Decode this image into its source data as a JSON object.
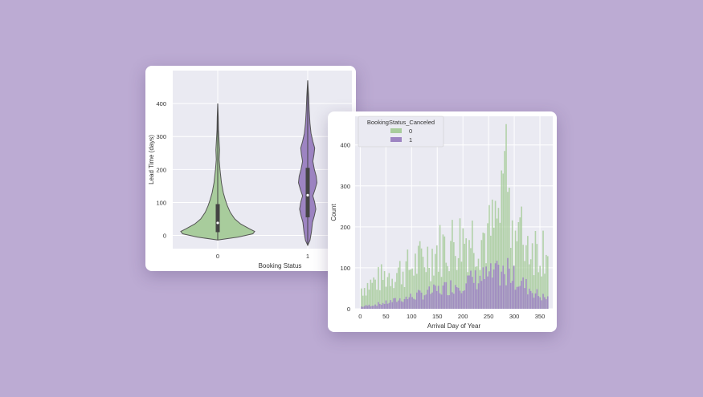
{
  "chart_data": [
    {
      "type": "violin",
      "title": "",
      "xlabel": "Booking Status",
      "ylabel": "Lead Time (days)",
      "categories": [
        "0",
        "1"
      ],
      "yticks": [
        0,
        100,
        200,
        300,
        400
      ],
      "ylim": [
        -40,
        500
      ],
      "grid": true,
      "colors": [
        "#a8cc9c",
        "#9d84c2"
      ],
      "series": [
        {
          "category": "0",
          "min": -14,
          "q1": 10,
          "median": 38,
          "q3": 95,
          "max": 400,
          "density": [
            [
              -14,
              0.0
            ],
            [
              -5,
              0.55
            ],
            [
              5,
              0.95
            ],
            [
              12,
              1.0
            ],
            [
              20,
              0.86
            ],
            [
              35,
              0.62
            ],
            [
              50,
              0.46
            ],
            [
              70,
              0.34
            ],
            [
              90,
              0.26
            ],
            [
              110,
              0.2
            ],
            [
              130,
              0.15
            ],
            [
              160,
              0.1
            ],
            [
              200,
              0.06
            ],
            [
              230,
              0.04
            ],
            [
              260,
              0.05
            ],
            [
              280,
              0.04
            ],
            [
              320,
              0.02
            ],
            [
              360,
              0.012
            ],
            [
              400,
              0.0
            ]
          ]
        },
        {
          "category": "1",
          "min": -30,
          "q1": 55,
          "median": 122,
          "q3": 205,
          "max": 470,
          "density": [
            [
              -30,
              0.0
            ],
            [
              -15,
              0.06
            ],
            [
              10,
              0.1
            ],
            [
              40,
              0.13
            ],
            [
              60,
              0.18
            ],
            [
              80,
              0.22
            ],
            [
              100,
              0.19
            ],
            [
              120,
              0.14
            ],
            [
              140,
              0.2
            ],
            [
              160,
              0.25
            ],
            [
              180,
              0.23
            ],
            [
              200,
              0.18
            ],
            [
              225,
              0.14
            ],
            [
              245,
              0.17
            ],
            [
              265,
              0.19
            ],
            [
              285,
              0.14
            ],
            [
              310,
              0.09
            ],
            [
              340,
              0.06
            ],
            [
              380,
              0.04
            ],
            [
              420,
              0.025
            ],
            [
              470,
              0.0
            ]
          ]
        }
      ]
    },
    {
      "type": "bar",
      "stacked": true,
      "title": "",
      "xlabel": "Arrival Day of Year",
      "ylabel": "Count",
      "xlim": [
        -10,
        375
      ],
      "ylim": [
        0,
        470
      ],
      "xticks": [
        0,
        50,
        100,
        150,
        200,
        250,
        300,
        350
      ],
      "yticks": [
        0,
        100,
        200,
        300,
        400
      ],
      "grid": true,
      "legend": {
        "title": "BookingStatus_Canceled",
        "position": "top-left",
        "entries": [
          {
            "label": "0",
            "color": "#a8cc9c"
          },
          {
            "label": "1",
            "color": "#9d84c2"
          }
        ]
      },
      "bin_width": 3,
      "series": [
        {
          "name": "0",
          "x": [
            0,
            50,
            100,
            150,
            200,
            250,
            285,
            300,
            350,
            366
          ],
          "values": [
            55,
            90,
            115,
            160,
            195,
            200,
            280,
            210,
            160,
            200
          ]
        },
        {
          "name": "1",
          "x": [
            0,
            50,
            100,
            150,
            200,
            250,
            285,
            300,
            350,
            366
          ],
          "values": [
            5,
            15,
            30,
            45,
            65,
            80,
            90,
            75,
            30,
            25
          ]
        }
      ]
    }
  ]
}
